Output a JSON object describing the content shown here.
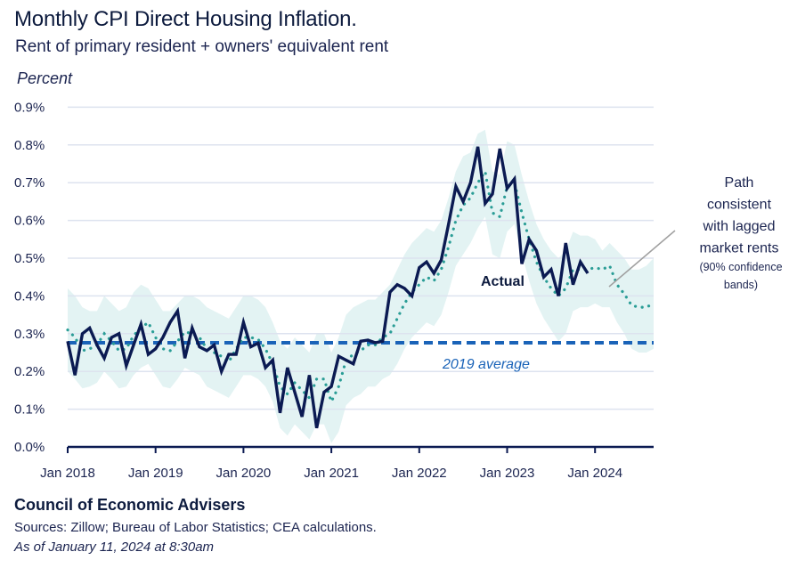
{
  "header": {
    "title": "Monthly CPI Direct Housing Inflation.",
    "subtitle": "Rent of primary resident + owners' equivalent rent",
    "y_unit": "Percent"
  },
  "footer": {
    "organization": "Council of Economic Advisers",
    "sources": "Sources: Zillow; Bureau of Labor Statistics; CEA calculations.",
    "as_of": "As of January 11, 2024 at 8:30am"
  },
  "colors": {
    "actual": "#0b1a52",
    "projection": "#2a9d96",
    "band": "#e3f3f3",
    "average": "#1a63b8",
    "grid": "#dde3ef",
    "axis": "#0b1a52",
    "leader": "#a0a0a0"
  },
  "chart_data": {
    "type": "line",
    "title": "Monthly CPI Direct Housing Inflation.",
    "subtitle": "Rent of primary resident + owners' equivalent rent",
    "xlabel": "",
    "ylabel": "Percent",
    "ylim": [
      0,
      0.9
    ],
    "y_ticks": [
      0.0,
      0.1,
      0.2,
      0.3,
      0.4,
      0.5,
      0.6,
      0.7,
      0.8,
      0.9
    ],
    "y_tick_labels": [
      "0.0%",
      "0.1%",
      "0.2%",
      "0.3%",
      "0.4%",
      "0.5%",
      "0.6%",
      "0.7%",
      "0.8%",
      "0.9%"
    ],
    "x_start": "2018-01",
    "x_end_month_index": 80,
    "x_ticks": [
      {
        "month_index": 0,
        "label": "Jan 2018"
      },
      {
        "month_index": 12,
        "label": "Jan 2019"
      },
      {
        "month_index": 24,
        "label": "Jan 2020"
      },
      {
        "month_index": 36,
        "label": "Jan 2021"
      },
      {
        "month_index": 48,
        "label": "Jan 2022"
      },
      {
        "month_index": 60,
        "label": "Jan 2023"
      },
      {
        "month_index": 72,
        "label": "Jan 2024"
      }
    ],
    "grid": true,
    "series": [
      {
        "name": "Actual",
        "style": "solid",
        "start_month_index": 0,
        "values": [
          0.28,
          0.19,
          0.3,
          0.315,
          0.27,
          0.235,
          0.29,
          0.3,
          0.215,
          0.27,
          0.325,
          0.245,
          0.26,
          0.29,
          0.33,
          0.36,
          0.235,
          0.315,
          0.265,
          0.255,
          0.27,
          0.2,
          0.245,
          0.245,
          0.33,
          0.265,
          0.275,
          0.21,
          0.23,
          0.09,
          0.21,
          0.145,
          0.08,
          0.19,
          0.05,
          0.145,
          0.16,
          0.24,
          0.23,
          0.22,
          0.28,
          0.283,
          0.276,
          0.28,
          0.41,
          0.43,
          0.42,
          0.4,
          0.475,
          0.49,
          0.46,
          0.495,
          0.59,
          0.69,
          0.65,
          0.7,
          0.795,
          0.645,
          0.67,
          0.79,
          0.685,
          0.71,
          0.485,
          0.55,
          0.52,
          0.45,
          0.47,
          0.4,
          0.54,
          0.43,
          0.49,
          0.46
        ]
      },
      {
        "name": "Path consistent with lagged market rents",
        "style": "dotted",
        "start_month_index": 0,
        "values": [
          0.31,
          0.29,
          0.255,
          0.26,
          0.27,
          0.3,
          0.28,
          0.255,
          0.26,
          0.295,
          0.315,
          0.33,
          0.29,
          0.26,
          0.255,
          0.28,
          0.305,
          0.3,
          0.29,
          0.26,
          0.25,
          0.24,
          0.225,
          0.26,
          0.29,
          0.29,
          0.285,
          0.26,
          0.22,
          0.16,
          0.14,
          0.17,
          0.15,
          0.13,
          0.18,
          0.18,
          0.12,
          0.16,
          0.23,
          0.245,
          0.255,
          0.27,
          0.27,
          0.29,
          0.3,
          0.34,
          0.38,
          0.41,
          0.43,
          0.45,
          0.44,
          0.47,
          0.53,
          0.6,
          0.64,
          0.66,
          0.7,
          0.73,
          0.62,
          0.61,
          0.69,
          0.7,
          0.62,
          0.55,
          0.49,
          0.45,
          0.42,
          0.4,
          0.42,
          0.47,
          0.47,
          0.47,
          0.475,
          0.47,
          0.48,
          0.43,
          0.405,
          0.375,
          0.37,
          0.37,
          0.38
        ]
      },
      {
        "name": "90% confidence band upper",
        "style": "band-upper",
        "start_month_index": 0,
        "values": [
          0.42,
          0.4,
          0.37,
          0.36,
          0.36,
          0.4,
          0.38,
          0.36,
          0.37,
          0.41,
          0.43,
          0.42,
          0.39,
          0.36,
          0.36,
          0.38,
          0.4,
          0.4,
          0.39,
          0.37,
          0.36,
          0.35,
          0.34,
          0.37,
          0.4,
          0.4,
          0.39,
          0.37,
          0.33,
          0.28,
          0.26,
          0.29,
          0.27,
          0.25,
          0.3,
          0.3,
          0.25,
          0.29,
          0.35,
          0.37,
          0.38,
          0.39,
          0.39,
          0.41,
          0.43,
          0.47,
          0.51,
          0.54,
          0.56,
          0.58,
          0.57,
          0.6,
          0.66,
          0.73,
          0.77,
          0.78,
          0.83,
          0.84,
          0.73,
          0.72,
          0.81,
          0.8,
          0.72,
          0.65,
          0.59,
          0.55,
          0.52,
          0.5,
          0.52,
          0.57,
          0.56,
          0.56,
          0.55,
          0.52,
          0.54,
          0.52,
          0.5,
          0.47,
          0.47,
          0.48,
          0.5
        ]
      },
      {
        "name": "90% confidence band lower",
        "style": "band-lower",
        "start_month_index": 0,
        "values": [
          0.2,
          0.18,
          0.155,
          0.16,
          0.17,
          0.2,
          0.18,
          0.155,
          0.16,
          0.19,
          0.21,
          0.22,
          0.19,
          0.16,
          0.155,
          0.18,
          0.21,
          0.2,
          0.19,
          0.16,
          0.15,
          0.14,
          0.13,
          0.16,
          0.19,
          0.19,
          0.18,
          0.16,
          0.12,
          0.05,
          0.03,
          0.06,
          0.04,
          0.02,
          0.06,
          0.06,
          0.01,
          0.04,
          0.11,
          0.13,
          0.14,
          0.16,
          0.16,
          0.18,
          0.19,
          0.22,
          0.26,
          0.29,
          0.31,
          0.33,
          0.32,
          0.35,
          0.41,
          0.48,
          0.51,
          0.54,
          0.58,
          0.61,
          0.51,
          0.5,
          0.57,
          0.59,
          0.51,
          0.44,
          0.38,
          0.34,
          0.31,
          0.28,
          0.3,
          0.36,
          0.37,
          0.37,
          0.38,
          0.37,
          0.37,
          0.33,
          0.3,
          0.26,
          0.25,
          0.25,
          0.26
        ]
      },
      {
        "name": "2019 average",
        "style": "dashed",
        "value": 0.276
      }
    ],
    "annotations": {
      "actual_label": "Actual",
      "average_label": "2019 average",
      "path_label_lines": [
        "Path",
        "consistent",
        "with lagged",
        "market rents"
      ],
      "band_label_lines": [
        "(90% confidence",
        "bands)"
      ]
    },
    "legend": "none"
  }
}
